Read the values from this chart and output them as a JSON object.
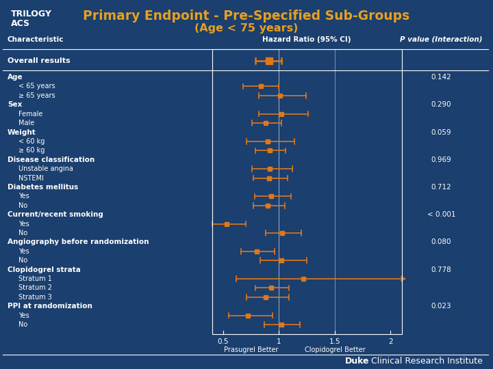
{
  "title_line1": "Primary Endpoint - Pre-Specified Sub-Groups",
  "title_line2": "(Age < 75 years)",
  "title_color": "#E8A020",
  "bg_color": "#1B3F6E",
  "text_color": "white",
  "orange_color": "#E07818",
  "header_char": "Characteristic",
  "header_hr": "Hazard Ratio (95% CI)",
  "header_pval": "P value (Interaction)",
  "xlabel_left": "Prasugrel Better",
  "xlabel_right": "Clopidogrel Better",
  "xmin": 0.4,
  "xmax": 2.1,
  "xticks": [
    0.5,
    1.0,
    1.5,
    2.0
  ],
  "xticklabels": [
    "0.5",
    "1",
    "1.5",
    "2"
  ],
  "rows": [
    {
      "label": "Overall results",
      "indent": 0,
      "hr": 0.91,
      "lo": 0.79,
      "hi": 1.02,
      "pval": "",
      "is_header": false,
      "overall": true
    },
    {
      "label": "Age",
      "indent": 0,
      "hr": null,
      "lo": null,
      "hi": null,
      "pval": "0.142",
      "is_header": true,
      "overall": false
    },
    {
      "label": "< 65 years",
      "indent": 1,
      "hr": 0.84,
      "lo": 0.68,
      "hi": 1.0,
      "pval": "",
      "is_header": false,
      "overall": false
    },
    {
      "label": "≥ 65 years",
      "indent": 1,
      "hr": 1.01,
      "lo": 0.82,
      "hi": 1.24,
      "pval": "",
      "is_header": false,
      "overall": false
    },
    {
      "label": "Sex",
      "indent": 0,
      "hr": null,
      "lo": null,
      "hi": null,
      "pval": "0.290",
      "is_header": true,
      "overall": false
    },
    {
      "label": "Female",
      "indent": 1,
      "hr": 1.02,
      "lo": 0.82,
      "hi": 1.26,
      "pval": "",
      "is_header": false,
      "overall": false
    },
    {
      "label": "Male",
      "indent": 1,
      "hr": 0.88,
      "lo": 0.76,
      "hi": 1.02,
      "pval": "",
      "is_header": false,
      "overall": false
    },
    {
      "label": "Weight",
      "indent": 0,
      "hr": null,
      "lo": null,
      "hi": null,
      "pval": "0.059",
      "is_header": true,
      "overall": false
    },
    {
      "label": "< 60 kg",
      "indent": 1,
      "hr": 0.9,
      "lo": 0.71,
      "hi": 1.14,
      "pval": "",
      "is_header": false,
      "overall": false
    },
    {
      "label": "≥ 60 kg",
      "indent": 1,
      "hr": 0.92,
      "lo": 0.79,
      "hi": 1.06,
      "pval": "",
      "is_header": false,
      "overall": false
    },
    {
      "label": "Disease classification",
      "indent": 0,
      "hr": null,
      "lo": null,
      "hi": null,
      "pval": "0.969",
      "is_header": true,
      "overall": false
    },
    {
      "label": "Unstable angina",
      "indent": 1,
      "hr": 0.92,
      "lo": 0.76,
      "hi": 1.12,
      "pval": "",
      "is_header": false,
      "overall": false
    },
    {
      "label": "NSTEMI",
      "indent": 1,
      "hr": 0.91,
      "lo": 0.77,
      "hi": 1.08,
      "pval": "",
      "is_header": false,
      "overall": false
    },
    {
      "label": "Diabetes mellitus",
      "indent": 0,
      "hr": null,
      "lo": null,
      "hi": null,
      "pval": "0.712",
      "is_header": true,
      "overall": false
    },
    {
      "label": "Yes",
      "indent": 1,
      "hr": 0.93,
      "lo": 0.78,
      "hi": 1.11,
      "pval": "",
      "is_header": false,
      "overall": false
    },
    {
      "label": "No",
      "indent": 1,
      "hr": 0.9,
      "lo": 0.77,
      "hi": 1.05,
      "pval": "",
      "is_header": false,
      "overall": false
    },
    {
      "label": "Current/recent smoking",
      "indent": 0,
      "hr": null,
      "lo": null,
      "hi": null,
      "pval": "< 0.001",
      "is_header": true,
      "overall": false
    },
    {
      "label": "Yes",
      "indent": 1,
      "hr": 0.53,
      "lo": 0.4,
      "hi": 0.7,
      "pval": "",
      "is_header": false,
      "overall": false
    },
    {
      "label": "No",
      "indent": 1,
      "hr": 1.03,
      "lo": 0.88,
      "hi": 1.2,
      "pval": "",
      "is_header": false,
      "overall": false
    },
    {
      "label": "Angiography before randomization",
      "indent": 0,
      "hr": null,
      "lo": null,
      "hi": null,
      "pval": "0.080",
      "is_header": true,
      "overall": false
    },
    {
      "label": "Yes",
      "indent": 1,
      "hr": 0.8,
      "lo": 0.66,
      "hi": 0.96,
      "pval": "",
      "is_header": false,
      "overall": false
    },
    {
      "label": "No",
      "indent": 1,
      "hr": 1.02,
      "lo": 0.83,
      "hi": 1.25,
      "pval": "",
      "is_header": false,
      "overall": false
    },
    {
      "label": "Clopidogrel strata",
      "indent": 0,
      "hr": null,
      "lo": null,
      "hi": null,
      "pval": "0.778",
      "is_header": true,
      "overall": false
    },
    {
      "label": "Stratum 1",
      "indent": 1,
      "hr": 1.22,
      "lo": 0.62,
      "hi": 2.2,
      "pval": "",
      "is_header": false,
      "overall": false
    },
    {
      "label": "Stratum 2",
      "indent": 1,
      "hr": 0.93,
      "lo": 0.79,
      "hi": 1.09,
      "pval": "",
      "is_header": false,
      "overall": false
    },
    {
      "label": "Stratum 3",
      "indent": 1,
      "hr": 0.88,
      "lo": 0.71,
      "hi": 1.09,
      "pval": "",
      "is_header": false,
      "overall": false
    },
    {
      "label": "PPI at randomization",
      "indent": 0,
      "hr": null,
      "lo": null,
      "hi": null,
      "pval": "0.023",
      "is_header": true,
      "overall": false
    },
    {
      "label": "Yes",
      "indent": 1,
      "hr": 0.72,
      "lo": 0.55,
      "hi": 0.94,
      "pval": "",
      "is_header": false,
      "overall": false
    },
    {
      "label": "No",
      "indent": 1,
      "hr": 1.02,
      "lo": 0.87,
      "hi": 1.19,
      "pval": "",
      "is_header": false,
      "overall": false
    }
  ],
  "footer_bold": "Duke",
  "footer_regular": " Clinical Research Institute"
}
